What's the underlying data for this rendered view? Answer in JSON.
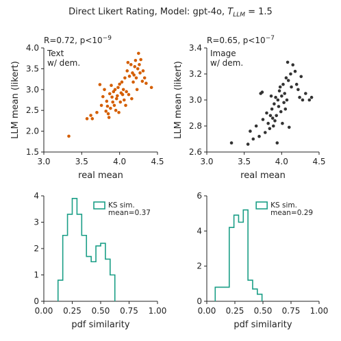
{
  "figure": {
    "title_prefix": "Direct Likert Rating, Model: gpt-4o, ",
    "title_symbol": "T",
    "title_subscript": "LLM",
    "title_suffix": " = 1.5"
  },
  "colors": {
    "orange": "#d45e00",
    "dark": "#333333",
    "teal": "#1a9e86",
    "axis": "#222222"
  },
  "chart_data": [
    {
      "id": "text",
      "type": "scatter",
      "xlabel": "real mean",
      "ylabel": "LLM mean (likert)",
      "xlim": [
        3.0,
        4.5
      ],
      "ylim": [
        1.5,
        4.0
      ],
      "xticks": [
        "3.0",
        "3.5",
        "4.0",
        "4.5"
      ],
      "yticks": [
        "1.5",
        "2.0",
        "2.5",
        "3.0",
        "3.5",
        "4.0"
      ],
      "annotation": "R=0.72, p<10",
      "annotation_exp": "−9",
      "label_lines": [
        "Text",
        "w/ dem."
      ],
      "color": "orange",
      "points": [
        [
          3.33,
          1.88
        ],
        [
          3.57,
          2.3
        ],
        [
          3.62,
          2.38
        ],
        [
          3.64,
          2.3
        ],
        [
          3.7,
          2.45
        ],
        [
          3.74,
          3.12
        ],
        [
          3.76,
          2.62
        ],
        [
          3.78,
          2.83
        ],
        [
          3.8,
          3.0
        ],
        [
          3.82,
          2.48
        ],
        [
          3.83,
          2.72
        ],
        [
          3.84,
          2.6
        ],
        [
          3.85,
          2.42
        ],
        [
          3.86,
          2.33
        ],
        [
          3.87,
          2.9
        ],
        [
          3.88,
          2.55
        ],
        [
          3.89,
          3.1
        ],
        [
          3.9,
          2.82
        ],
        [
          3.91,
          2.7
        ],
        [
          3.92,
          2.95
        ],
        [
          3.93,
          2.62
        ],
        [
          3.94,
          3.0
        ],
        [
          3.95,
          2.5
        ],
        [
          3.96,
          2.78
        ],
        [
          3.97,
          2.85
        ],
        [
          3.98,
          3.05
        ],
        [
          3.99,
          2.45
        ],
        [
          4.0,
          3.13
        ],
        [
          4.01,
          2.7
        ],
        [
          4.02,
          2.92
        ],
        [
          4.03,
          3.18
        ],
        [
          4.04,
          2.88
        ],
        [
          4.05,
          3.0
        ],
        [
          4.06,
          2.75
        ],
        [
          4.07,
          3.28
        ],
        [
          4.08,
          2.62
        ],
        [
          4.09,
          2.95
        ],
        [
          4.1,
          3.45
        ],
        [
          4.11,
          3.65
        ],
        [
          4.12,
          2.88
        ],
        [
          4.13,
          3.32
        ],
        [
          4.15,
          3.6
        ],
        [
          4.16,
          2.78
        ],
        [
          4.17,
          3.4
        ],
        [
          4.18,
          3.18
        ],
        [
          4.19,
          3.35
        ],
        [
          4.2,
          3.55
        ],
        [
          4.21,
          3.7
        ],
        [
          4.22,
          3.28
        ],
        [
          4.23,
          3.0
        ],
        [
          4.24,
          3.5
        ],
        [
          4.25,
          3.87
        ],
        [
          4.26,
          3.6
        ],
        [
          4.27,
          3.4
        ],
        [
          4.28,
          3.72
        ],
        [
          4.3,
          3.2
        ],
        [
          4.31,
          3.45
        ],
        [
          4.33,
          3.28
        ],
        [
          4.35,
          3.15
        ],
        [
          4.42,
          3.05
        ]
      ]
    },
    {
      "id": "image",
      "type": "scatter",
      "xlabel": "real mean",
      "ylabel": "LLM mean (likert)",
      "xlim": [
        3.0,
        4.5
      ],
      "ylim": [
        2.6,
        3.4
      ],
      "xticks": [
        "3.0",
        "3.5",
        "4.0",
        "4.5"
      ],
      "yticks": [
        "2.6",
        "2.8",
        "3.0",
        "3.2",
        "3.4"
      ],
      "annotation": "R=0.65, p<10",
      "annotation_exp": "−7",
      "label_lines": [
        "Image",
        "w/ dem."
      ],
      "color": "dark",
      "points": [
        [
          3.33,
          2.67
        ],
        [
          3.55,
          2.66
        ],
        [
          3.58,
          2.76
        ],
        [
          3.62,
          2.7
        ],
        [
          3.66,
          2.8
        ],
        [
          3.7,
          2.72
        ],
        [
          3.72,
          3.05
        ],
        [
          3.74,
          3.06
        ],
        [
          3.75,
          2.85
        ],
        [
          3.78,
          2.75
        ],
        [
          3.8,
          2.9
        ],
        [
          3.82,
          2.82
        ],
        [
          3.84,
          2.78
        ],
        [
          3.85,
          2.88
        ],
        [
          3.86,
          3.03
        ],
        [
          3.87,
          2.93
        ],
        [
          3.88,
          2.86
        ],
        [
          3.89,
          2.8
        ],
        [
          3.9,
          2.97
        ],
        [
          3.91,
          2.84
        ],
        [
          3.92,
          3.02
        ],
        [
          3.93,
          2.88
        ],
        [
          3.94,
          2.67
        ],
        [
          3.95,
          3.0
        ],
        [
          3.96,
          2.95
        ],
        [
          3.97,
          3.07
        ],
        [
          3.98,
          3.1
        ],
        [
          3.99,
          2.91
        ],
        [
          4.0,
          3.03
        ],
        [
          4.01,
          2.82
        ],
        [
          4.02,
          3.12
        ],
        [
          4.03,
          2.98
        ],
        [
          4.04,
          3.05
        ],
        [
          4.05,
          2.93
        ],
        [
          4.06,
          3.17
        ],
        [
          4.07,
          3.0
        ],
        [
          4.08,
          3.29
        ],
        [
          4.09,
          3.15
        ],
        [
          4.1,
          2.79
        ],
        [
          4.12,
          3.2
        ],
        [
          4.13,
          3.1
        ],
        [
          4.15,
          3.27
        ],
        [
          4.18,
          3.22
        ],
        [
          4.2,
          3.12
        ],
        [
          4.22,
          3.08
        ],
        [
          4.24,
          3.02
        ],
        [
          4.26,
          3.18
        ],
        [
          4.28,
          3.0
        ],
        [
          4.32,
          3.05
        ],
        [
          4.37,
          3.0
        ],
        [
          4.4,
          3.02
        ]
      ]
    },
    {
      "id": "text_hist",
      "type": "step-histogram",
      "xlabel": "pdf similarity",
      "xlim": [
        0.0,
        1.0
      ],
      "ylim": [
        0,
        4
      ],
      "xticks": [
        "0.00",
        "0.25",
        "0.50",
        "0.75",
        "1.00"
      ],
      "yticks": [
        "0",
        "1",
        "2",
        "3",
        "4"
      ],
      "legend_label": "KS sim.",
      "legend_sublabel": "mean=0.37",
      "color": "teal",
      "bin_edges": [
        0.125,
        0.1667,
        0.2083,
        0.25,
        0.2917,
        0.3333,
        0.375,
        0.4167,
        0.4583,
        0.5,
        0.5417,
        0.5833,
        0.625
      ],
      "values": [
        0.8,
        2.5,
        3.3,
        3.9,
        3.3,
        2.5,
        1.7,
        1.5,
        2.1,
        2.2,
        1.6,
        1.0
      ]
    },
    {
      "id": "image_hist",
      "type": "step-histogram",
      "xlabel": "pdf similarity",
      "xlim": [
        0.0,
        1.0
      ],
      "ylim": [
        0,
        6
      ],
      "xticks": [
        "0.00",
        "0.25",
        "0.50",
        "0.75",
        "1.00"
      ],
      "yticks": [
        "0",
        "2",
        "4",
        "6"
      ],
      "legend_label": "KS sim.",
      "legend_sublabel": "mean=0.29",
      "color": "teal",
      "bin_edges": [
        0.075,
        0.1167,
        0.1583,
        0.2,
        0.2417,
        0.2833,
        0.325,
        0.3667,
        0.4083,
        0.45,
        0.4917
      ],
      "values": [
        0.8,
        0.8,
        0.8,
        4.2,
        4.9,
        4.5,
        5.2,
        1.2,
        0.7,
        0.4
      ]
    }
  ]
}
